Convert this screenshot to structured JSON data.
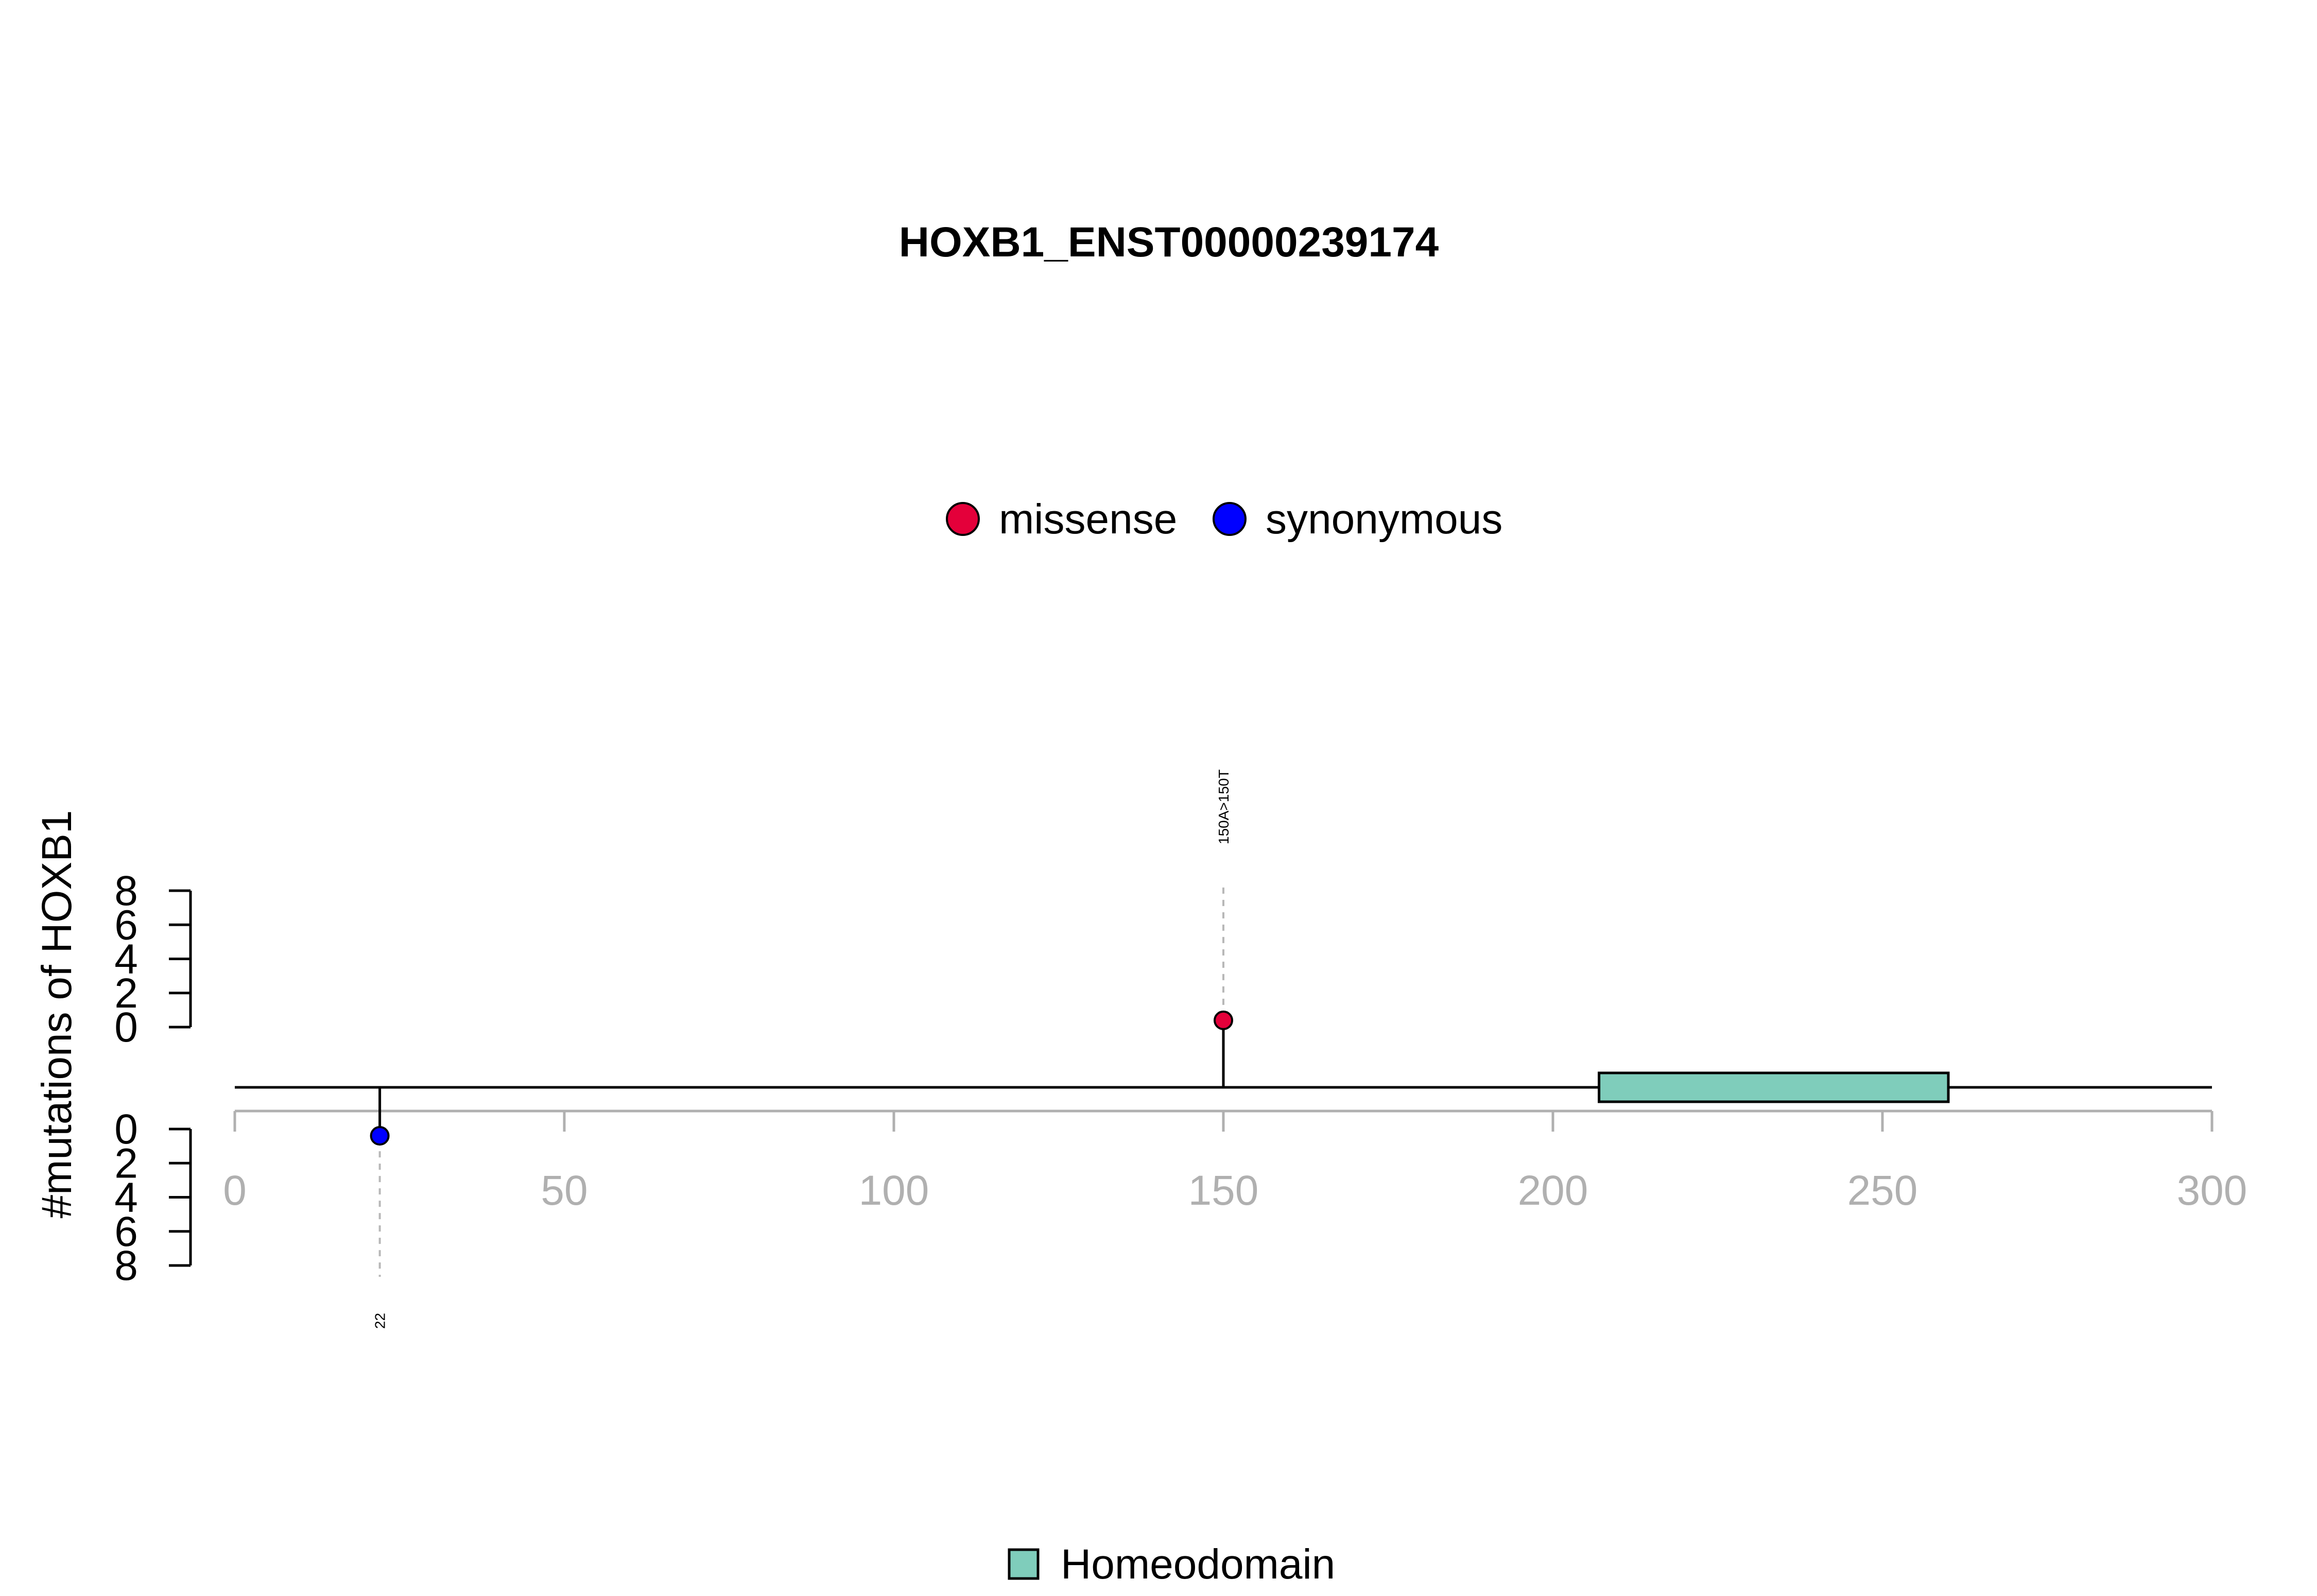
{
  "chart_data": {
    "type": "lollipop",
    "title": "HOXB1_ENST00000239174",
    "ylabel": "#mutations of HOXB1",
    "xlim": [
      0,
      300
    ],
    "x_ticks": [
      "0",
      "50",
      "100",
      "150",
      "200",
      "250",
      "300"
    ],
    "y_ticks_upper": [
      "0",
      "2",
      "4",
      "6",
      "8"
    ],
    "y_ticks_lower": [
      "0",
      "2",
      "4",
      "6",
      "8"
    ],
    "ylim": [
      0,
      8
    ],
    "legend": {
      "placement": "top-center",
      "items": [
        {
          "label": "missense",
          "color": "#E4003A"
        },
        {
          "label": "synonymous",
          "color": "#0000FF"
        }
      ]
    },
    "mutations": [
      {
        "position": 150,
        "count": 1,
        "type": "missense",
        "side": "upper",
        "color": "#E4003A",
        "label": "150A>150T"
      },
      {
        "position": 22,
        "count": 1,
        "type": "synonymous",
        "side": "lower",
        "color": "#0000FF",
        "label": "22"
      }
    ],
    "domains": [
      {
        "name": "Homeodomain",
        "start": 207,
        "end": 260,
        "color": "#7FCDBB"
      }
    ],
    "domain_legend": {
      "placement": "bottom-center",
      "items": [
        {
          "label": "Homeodomain",
          "color": "#7FCDBB"
        }
      ]
    },
    "grid": false
  }
}
